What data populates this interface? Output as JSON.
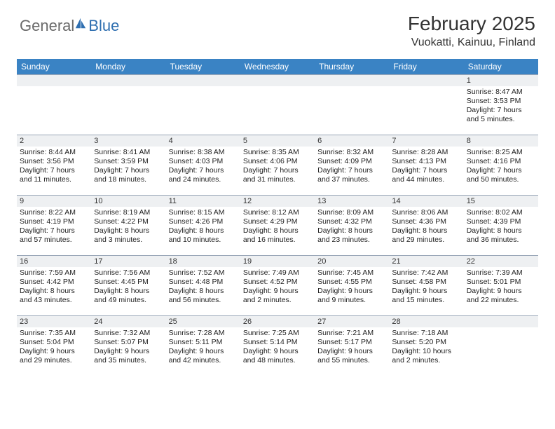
{
  "logo": {
    "part1": "General",
    "part2": "Blue"
  },
  "header": {
    "title": "February 2025",
    "location": "Vuokatti, Kainuu, Finland"
  },
  "colors": {
    "header_bg": "#3a83c4",
    "header_text": "#ffffff",
    "daynum_bg": "#eef0f2",
    "border": "#9aa7b8",
    "logo_gray": "#6b6b6b",
    "logo_blue": "#2f6fb0"
  },
  "dayNames": [
    "Sunday",
    "Monday",
    "Tuesday",
    "Wednesday",
    "Thursday",
    "Friday",
    "Saturday"
  ],
  "weeks": [
    [
      null,
      null,
      null,
      null,
      null,
      null,
      {
        "n": "1",
        "sr": "8:47 AM",
        "ss": "3:53 PM",
        "dl": "7 hours and 5 minutes."
      }
    ],
    [
      {
        "n": "2",
        "sr": "8:44 AM",
        "ss": "3:56 PM",
        "dl": "7 hours and 11 minutes."
      },
      {
        "n": "3",
        "sr": "8:41 AM",
        "ss": "3:59 PM",
        "dl": "7 hours and 18 minutes."
      },
      {
        "n": "4",
        "sr": "8:38 AM",
        "ss": "4:03 PM",
        "dl": "7 hours and 24 minutes."
      },
      {
        "n": "5",
        "sr": "8:35 AM",
        "ss": "4:06 PM",
        "dl": "7 hours and 31 minutes."
      },
      {
        "n": "6",
        "sr": "8:32 AM",
        "ss": "4:09 PM",
        "dl": "7 hours and 37 minutes."
      },
      {
        "n": "7",
        "sr": "8:28 AM",
        "ss": "4:13 PM",
        "dl": "7 hours and 44 minutes."
      },
      {
        "n": "8",
        "sr": "8:25 AM",
        "ss": "4:16 PM",
        "dl": "7 hours and 50 minutes."
      }
    ],
    [
      {
        "n": "9",
        "sr": "8:22 AM",
        "ss": "4:19 PM",
        "dl": "7 hours and 57 minutes."
      },
      {
        "n": "10",
        "sr": "8:19 AM",
        "ss": "4:22 PM",
        "dl": "8 hours and 3 minutes."
      },
      {
        "n": "11",
        "sr": "8:15 AM",
        "ss": "4:26 PM",
        "dl": "8 hours and 10 minutes."
      },
      {
        "n": "12",
        "sr": "8:12 AM",
        "ss": "4:29 PM",
        "dl": "8 hours and 16 minutes."
      },
      {
        "n": "13",
        "sr": "8:09 AM",
        "ss": "4:32 PM",
        "dl": "8 hours and 23 minutes."
      },
      {
        "n": "14",
        "sr": "8:06 AM",
        "ss": "4:36 PM",
        "dl": "8 hours and 29 minutes."
      },
      {
        "n": "15",
        "sr": "8:02 AM",
        "ss": "4:39 PM",
        "dl": "8 hours and 36 minutes."
      }
    ],
    [
      {
        "n": "16",
        "sr": "7:59 AM",
        "ss": "4:42 PM",
        "dl": "8 hours and 43 minutes."
      },
      {
        "n": "17",
        "sr": "7:56 AM",
        "ss": "4:45 PM",
        "dl": "8 hours and 49 minutes."
      },
      {
        "n": "18",
        "sr": "7:52 AM",
        "ss": "4:48 PM",
        "dl": "8 hours and 56 minutes."
      },
      {
        "n": "19",
        "sr": "7:49 AM",
        "ss": "4:52 PM",
        "dl": "9 hours and 2 minutes."
      },
      {
        "n": "20",
        "sr": "7:45 AM",
        "ss": "4:55 PM",
        "dl": "9 hours and 9 minutes."
      },
      {
        "n": "21",
        "sr": "7:42 AM",
        "ss": "4:58 PM",
        "dl": "9 hours and 15 minutes."
      },
      {
        "n": "22",
        "sr": "7:39 AM",
        "ss": "5:01 PM",
        "dl": "9 hours and 22 minutes."
      }
    ],
    [
      {
        "n": "23",
        "sr": "7:35 AM",
        "ss": "5:04 PM",
        "dl": "9 hours and 29 minutes."
      },
      {
        "n": "24",
        "sr": "7:32 AM",
        "ss": "5:07 PM",
        "dl": "9 hours and 35 minutes."
      },
      {
        "n": "25",
        "sr": "7:28 AM",
        "ss": "5:11 PM",
        "dl": "9 hours and 42 minutes."
      },
      {
        "n": "26",
        "sr": "7:25 AM",
        "ss": "5:14 PM",
        "dl": "9 hours and 48 minutes."
      },
      {
        "n": "27",
        "sr": "7:21 AM",
        "ss": "5:17 PM",
        "dl": "9 hours and 55 minutes."
      },
      {
        "n": "28",
        "sr": "7:18 AM",
        "ss": "5:20 PM",
        "dl": "10 hours and 2 minutes."
      },
      null
    ]
  ],
  "labels": {
    "sunrise": "Sunrise:",
    "sunset": "Sunset:",
    "daylight": "Daylight:"
  }
}
